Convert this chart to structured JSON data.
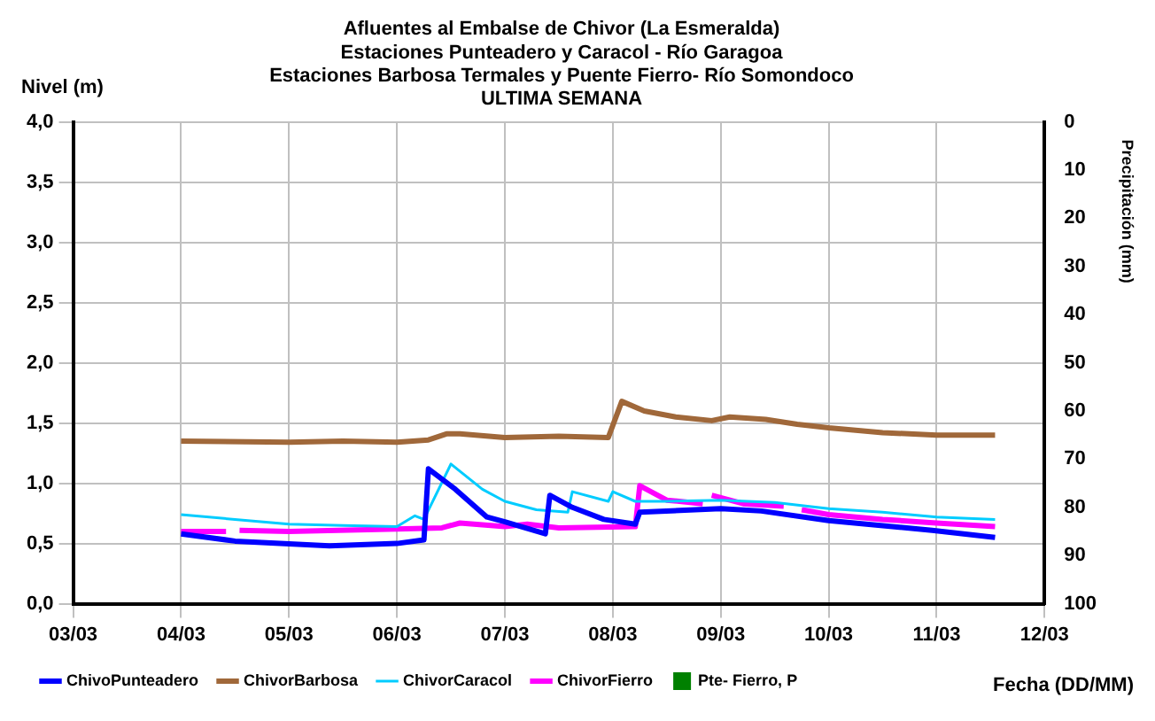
{
  "chart_data": {
    "type": "line",
    "title": "Afluentes al Embalse de Chivor (La Esmeralda)\nEstaciones Punteadero y Caracol - Río Garagoa\nEstaciones Barbosa Termales y Puente Fierro- Río Somondoco\nULTIMA SEMANA",
    "xlabel": "Fecha (DD/MM)",
    "ylabel": "Nivel (m)",
    "y2label": "Precipitación (mm)",
    "xlim": [
      "--03-03",
      "--03-12"
    ],
    "xticks": [
      {
        "value": "--03-03",
        "label": "03/03"
      },
      {
        "value": "--03-04",
        "label": "04/03"
      },
      {
        "value": "--03-05",
        "label": "05/03"
      },
      {
        "value": "--03-06",
        "label": "06/03"
      },
      {
        "value": "--03-07",
        "label": "07/03"
      },
      {
        "value": "--03-08",
        "label": "08/03"
      },
      {
        "value": "--03-09",
        "label": "09/03"
      },
      {
        "value": "--03-10",
        "label": "10/03"
      },
      {
        "value": "--03-11",
        "label": "11/03"
      },
      {
        "value": "--03-12",
        "label": "12/03"
      }
    ],
    "ylim": [
      0,
      4
    ],
    "yticks": [
      {
        "value": 0,
        "label": "0,0"
      },
      {
        "value": 0.5,
        "label": "0,5"
      },
      {
        "value": 1,
        "label": "1,0"
      },
      {
        "value": 1.5,
        "label": "1,5"
      },
      {
        "value": 2,
        "label": "2,0"
      },
      {
        "value": 2.5,
        "label": "2,5"
      },
      {
        "value": 3,
        "label": "3,0"
      },
      {
        "value": 3.5,
        "label": "3,5"
      },
      {
        "value": 4,
        "label": "4,0"
      }
    ],
    "y2lim": [
      100,
      0
    ],
    "y2ticks": [
      0,
      10,
      20,
      30,
      40,
      50,
      60,
      70,
      80,
      90,
      100
    ],
    "grid": true,
    "legend": "bottom",
    "marker": "none",
    "line_style": "solid",
    "series": [
      {
        "name": "ChivoPunteadero",
        "color": "#0000ff",
        "x": [
          "--03-04T00:00",
          "--03-04T12:00",
          "--03-05T09:00",
          "--03-06T00:00",
          "--03-06T06:00",
          "--03-06T07:00",
          "--03-06T13:00",
          "--03-06T20:00",
          "--03-07T00:00",
          "--03-07T09:00",
          "--03-07T10:00",
          "--03-07T15:00",
          "--03-07T22:00",
          "--03-08T05:00",
          "--03-08T06:00",
          "--03-09T00:00",
          "--03-09T09:00",
          "--03-10T00:00",
          "--03-10T23:00",
          "--03-11T13:00"
        ],
        "values": [
          0.58,
          0.52,
          0.48,
          0.5,
          0.53,
          1.12,
          0.95,
          0.72,
          0.68,
          0.58,
          0.9,
          0.8,
          0.7,
          0.66,
          0.76,
          0.79,
          0.77,
          0.69,
          0.61,
          0.55
        ]
      },
      {
        "name": "ChivorBarbosa",
        "color": "#a0683a",
        "x": [
          "--03-04T00:00",
          "--03-05T00:00",
          "--03-05T12:00",
          "--03-06T00:00",
          "--03-06T07:00",
          "--03-06T11:00",
          "--03-06T14:00",
          "--03-07T00:00",
          "--03-07T12:00",
          "--03-07T23:00",
          "--03-08T02:00",
          "--03-08T07:00",
          "--03-08T14:00",
          "--03-08T22:00",
          "--03-09T02:00",
          "--03-09T10:00",
          "--03-09T17:00",
          "--03-10T00:00",
          "--03-10T12:00",
          "--03-11T00:00",
          "--03-11T13:00"
        ],
        "values": [
          1.35,
          1.34,
          1.35,
          1.34,
          1.36,
          1.41,
          1.41,
          1.38,
          1.39,
          1.38,
          1.68,
          1.6,
          1.55,
          1.52,
          1.55,
          1.53,
          1.49,
          1.46,
          1.42,
          1.4,
          1.4
        ]
      },
      {
        "name": "ChivorCaracol",
        "color": "#00ccff",
        "x": [
          "--03-04T00:00",
          "--03-04T12:00",
          "--03-05T00:00",
          "--03-05T12:00",
          "--03-06T00:00",
          "--03-06T04:00",
          "--03-06T06:00",
          "--03-06T12:00",
          "--03-06T19:00",
          "--03-07T00:00",
          "--03-07T07:00",
          "--03-07T14:00",
          "--03-07T15:00",
          "--03-07T23:00",
          "--03-08T00:00",
          "--03-08T05:00",
          "--03-08T12:00",
          "--03-09T00:00",
          "--03-09T12:00",
          "--03-10T00:00",
          "--03-10T12:00",
          "--03-11T00:00",
          "--03-11T13:00"
        ],
        "values": [
          0.74,
          0.7,
          0.66,
          0.65,
          0.64,
          0.73,
          0.7,
          1.16,
          0.95,
          0.85,
          0.78,
          0.76,
          0.93,
          0.85,
          0.93,
          0.85,
          0.85,
          0.86,
          0.84,
          0.79,
          0.76,
          0.72,
          0.7
        ]
      },
      {
        "name": "ChivorFierro",
        "color": "#ff00ff",
        "x": [
          "--03-04T00:00",
          "--03-04T10:00",
          "--03-04T11:00",
          "--03-04T13:00",
          "--03-05T00:00",
          "--03-06T00:00",
          "--03-06T10:00",
          "--03-06T14:00",
          "--03-07T00:00",
          "--03-07T05:00",
          "--03-07T12:00",
          "--03-08T05:00",
          "--03-08T06:00",
          "--03-08T12:00",
          "--03-08T20:00",
          "--03-08T21:00",
          "--03-08T22:00",
          "--03-09T05:00",
          "--03-09T14:00",
          "--03-09T15:00",
          "--03-09T18:00",
          "--03-10T00:00",
          "--03-10T12:00",
          "--03-11T00:00",
          "--03-11T13:00"
        ],
        "values": [
          0.6,
          0.6,
          null,
          0.61,
          0.6,
          0.62,
          0.63,
          0.67,
          0.64,
          0.66,
          0.63,
          0.64,
          0.98,
          0.86,
          0.83,
          null,
          0.9,
          0.83,
          0.81,
          null,
          0.78,
          0.74,
          0.7,
          0.67,
          0.64
        ]
      },
      {
        "name": "Pte- Fierro, P",
        "color": "#008000",
        "type": "scatter",
        "axis": "y2",
        "marker": "square"
      }
    ]
  }
}
